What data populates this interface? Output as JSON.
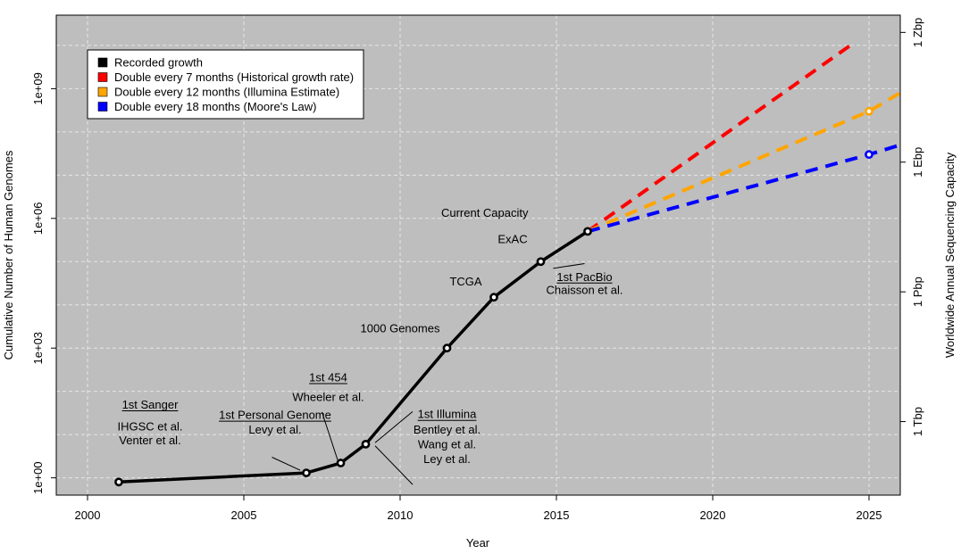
{
  "chart_data": {
    "type": "line",
    "xlabel": "Year",
    "ylabel": "Cumulative Number of Human Genomes",
    "ylabel_right": "Worldwide Annual Sequencing Capacity",
    "xlim": [
      1999.0,
      2026.0
    ],
    "ylim_log10": [
      -0.4,
      10.7
    ],
    "y_scale": "log",
    "grid": true,
    "x_ticks": [
      2000,
      2005,
      2010,
      2015,
      2020,
      2025
    ],
    "y_ticks": [
      {
        "value": 1,
        "label": "1e+00"
      },
      {
        "value": 1000,
        "label": "1e+03"
      },
      {
        "value": 1000000,
        "label": "1e+06"
      },
      {
        "value": 1000000000,
        "label": "1e+09"
      }
    ],
    "right_ticks": [
      {
        "value": 20,
        "label": "1 Tbp"
      },
      {
        "value": 20000,
        "label": "1 Pbp"
      },
      {
        "value": 20000000,
        "label": "1 Ebp"
      },
      {
        "value": 20000000000,
        "label": "1 Zbp"
      }
    ],
    "legend_position": "top-left",
    "series": [
      {
        "name": "Recorded growth",
        "color": "#000000",
        "style": "solid",
        "x": [
          2001.0,
          2007.0,
          2008.1,
          2008.9,
          2011.5,
          2013.0,
          2014.5,
          2016.0
        ],
        "y": [
          0.8,
          1.3,
          2.2,
          6.0,
          1000,
          15000,
          100000,
          500000
        ]
      },
      {
        "name": "Double every 7 months (Historical growth rate)",
        "color": "#ff0000",
        "style": "dashed",
        "x": [
          2016.0,
          2024.4
        ],
        "y": [
          500000,
          10000000000
        ]
      },
      {
        "name": "Double every 12 months (Illumina Estimate)",
        "color": "#ffa500",
        "style": "dashed",
        "x": [
          2016.0,
          2025.0,
          2026.0
        ],
        "y": [
          500000,
          300000000,
          800000000
        ],
        "highlight_point": {
          "x": 2025.0,
          "y": 300000000
        }
      },
      {
        "name": "Double every 18 months (Moore's Law)",
        "color": "#0000ff",
        "style": "dashed",
        "x": [
          2016.0,
          2025.0,
          2026.0
        ],
        "y": [
          500000,
          30000000,
          50000000
        ],
        "highlight_point": {
          "x": 2025.0,
          "y": 30000000
        }
      }
    ],
    "annotations": [
      {
        "text": "Current Capacity",
        "x": 2014.1,
        "y": 1100000,
        "anchor": "end"
      },
      {
        "text": "ExAC",
        "x": 2013.6,
        "y": 270000,
        "anchor": "middle"
      },
      {
        "text": "TCGA",
        "x": 2012.1,
        "y": 28000,
        "anchor": "middle"
      },
      {
        "text": "1000 Genomes",
        "x": 2010.0,
        "y": 2300,
        "anchor": "middle"
      },
      {
        "text": "1st PacBio",
        "x": 2015.9,
        "y": 36000,
        "anchor": "middle",
        "underline": true
      },
      {
        "text": "Chaisson et al.",
        "x": 2015.9,
        "y": 18000,
        "anchor": "middle"
      },
      {
        "text": "1st 454",
        "x": 2007.7,
        "y": 170,
        "anchor": "middle",
        "underline": true
      },
      {
        "text": "Wheeler et al.",
        "x": 2007.7,
        "y": 60,
        "anchor": "middle"
      },
      {
        "text": "1st Personal Genome",
        "x": 2006.0,
        "y": 23,
        "anchor": "middle",
        "underline": true
      },
      {
        "text": "Levy et al.",
        "x": 2006.0,
        "y": 10.5,
        "anchor": "middle"
      },
      {
        "text": "1st Sanger",
        "x": 2002.0,
        "y": 40,
        "anchor": "middle",
        "underline": true
      },
      {
        "text": "IHGSC et al.",
        "x": 2002.0,
        "y": 12.5,
        "anchor": "middle"
      },
      {
        "text": "Venter et al.",
        "x": 2002.0,
        "y": 6.0,
        "anchor": "middle"
      },
      {
        "text": "1st Illumina",
        "x": 2011.5,
        "y": 24,
        "anchor": "middle",
        "underline": true
      },
      {
        "text": "Bentley et al.",
        "x": 2011.5,
        "y": 10.5,
        "anchor": "middle"
      },
      {
        "text": "Wang et al.",
        "x": 2011.5,
        "y": 4.8,
        "anchor": "middle"
      },
      {
        "text": "Ley et al.",
        "x": 2011.5,
        "y": 2.2,
        "anchor": "middle"
      }
    ],
    "leader_lines": [
      {
        "x1": 2015.9,
        "y1": 90000,
        "x2": 2014.9,
        "y2": 70000
      },
      {
        "x1": 2007.5,
        "y1": 33,
        "x2": 2008.0,
        "y2": 2.6
      },
      {
        "x1": 2005.9,
        "y1": 3.0,
        "x2": 2006.8,
        "y2": 1.5
      },
      {
        "x1": 2010.4,
        "y1": 34,
        "x2": 2009.2,
        "y2": 6.5
      },
      {
        "x1": 2010.4,
        "y1": 0.7,
        "x2": 2009.2,
        "y2": 5.5
      }
    ]
  }
}
